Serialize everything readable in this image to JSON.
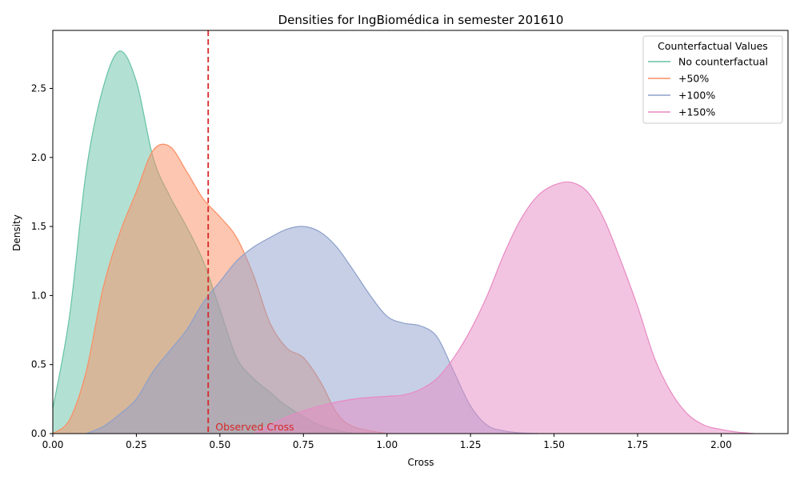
{
  "chart_data": {
    "type": "area",
    "title": "Densities for IngBiomédica in semester 201610",
    "xlabel": "Cross",
    "ylabel": "Density",
    "xlim": [
      0.0,
      2.2
    ],
    "ylim": [
      0.0,
      2.92
    ],
    "x_ticks": [
      "0.00",
      "0.25",
      "0.50",
      "0.75",
      "1.00",
      "1.25",
      "1.50",
      "1.75",
      "2.00"
    ],
    "y_ticks": [
      "0.0",
      "0.5",
      "1.0",
      "1.5",
      "2.0",
      "2.5"
    ],
    "grid": false,
    "legend": {
      "title": "Counterfactual Values",
      "placement": "top-right",
      "entries": [
        "No counterfactual",
        "+50%",
        "+100%",
        "+150%"
      ]
    },
    "reference_line": {
      "x": 0.465,
      "label": "Observed Cross",
      "color": "#d62728"
    },
    "series": [
      {
        "name": "No counterfactual",
        "color": "#66c2a5",
        "x": [
          0.0,
          0.05,
          0.1,
          0.15,
          0.2,
          0.25,
          0.3,
          0.35,
          0.4,
          0.45,
          0.5,
          0.55,
          0.6,
          0.65,
          0.7,
          0.8,
          0.9
        ],
        "y": [
          0.18,
          0.85,
          1.9,
          2.5,
          2.77,
          2.55,
          2.0,
          1.72,
          1.5,
          1.25,
          0.9,
          0.55,
          0.4,
          0.3,
          0.2,
          0.06,
          0.0
        ]
      },
      {
        "name": "+50%",
        "color": "#fc8d62",
        "x": [
          0.0,
          0.05,
          0.1,
          0.15,
          0.2,
          0.25,
          0.3,
          0.35,
          0.4,
          0.45,
          0.5,
          0.55,
          0.6,
          0.65,
          0.7,
          0.75,
          0.8,
          0.85,
          0.9,
          1.0
        ],
        "y": [
          0.0,
          0.1,
          0.45,
          1.05,
          1.45,
          1.75,
          2.05,
          2.08,
          1.9,
          1.7,
          1.57,
          1.42,
          1.15,
          0.8,
          0.62,
          0.55,
          0.38,
          0.15,
          0.05,
          0.0
        ]
      },
      {
        "name": "+100%",
        "color": "#8da0cb",
        "x": [
          0.1,
          0.15,
          0.2,
          0.25,
          0.3,
          0.35,
          0.4,
          0.45,
          0.5,
          0.55,
          0.6,
          0.65,
          0.7,
          0.75,
          0.8,
          0.85,
          0.9,
          0.95,
          1.0,
          1.05,
          1.1,
          1.15,
          1.2,
          1.25,
          1.3,
          1.35,
          1.4,
          1.45
        ],
        "y": [
          0.0,
          0.05,
          0.14,
          0.25,
          0.45,
          0.6,
          0.75,
          0.95,
          1.1,
          1.25,
          1.35,
          1.42,
          1.48,
          1.5,
          1.46,
          1.35,
          1.18,
          1.0,
          0.85,
          0.8,
          0.78,
          0.7,
          0.45,
          0.2,
          0.06,
          0.02,
          0.005,
          0.0
        ]
      },
      {
        "name": "+150%",
        "color": "#e78ac3",
        "x": [
          0.6,
          0.7,
          0.8,
          0.9,
          1.0,
          1.05,
          1.1,
          1.15,
          1.2,
          1.25,
          1.3,
          1.35,
          1.4,
          1.45,
          1.5,
          1.55,
          1.6,
          1.65,
          1.7,
          1.75,
          1.8,
          1.85,
          1.9,
          1.95,
          2.0,
          2.05,
          2.1
        ],
        "y": [
          0.0,
          0.12,
          0.2,
          0.25,
          0.27,
          0.28,
          0.32,
          0.4,
          0.55,
          0.75,
          1.0,
          1.3,
          1.55,
          1.72,
          1.8,
          1.82,
          1.75,
          1.55,
          1.25,
          0.92,
          0.55,
          0.3,
          0.14,
          0.06,
          0.03,
          0.01,
          0.0
        ]
      }
    ]
  }
}
